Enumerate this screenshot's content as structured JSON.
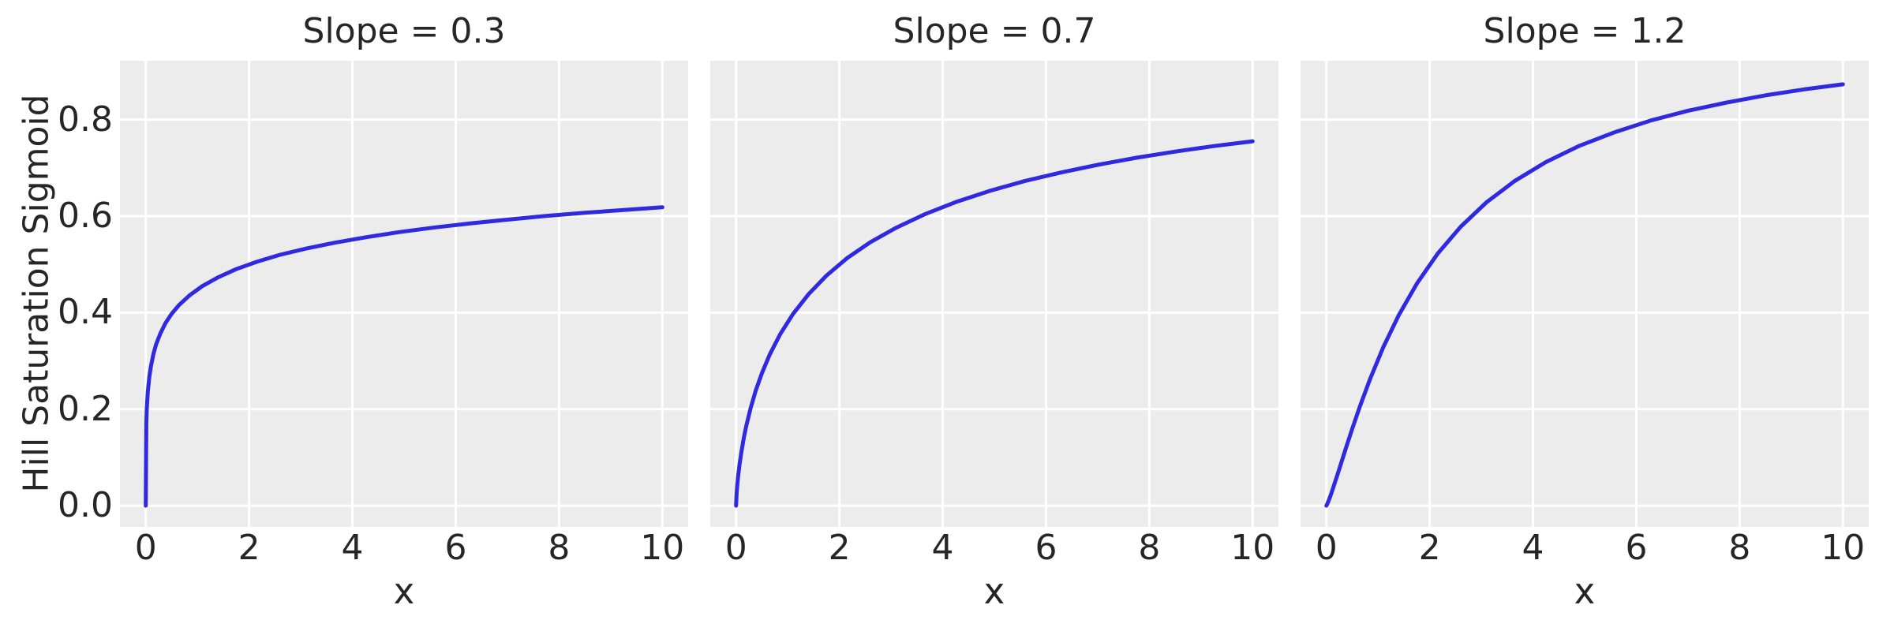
{
  "figure": {
    "background": "#ffffff",
    "axes_background": "#ececec",
    "grid_color": "#ffffff",
    "text_color": "#262626",
    "line_color": "#3029e0"
  },
  "chart_data": {
    "type": "line",
    "title": "",
    "xlabel": "x",
    "ylabel": "Hill Saturation Sigmoid",
    "grid": true,
    "legend": "none",
    "xlim": [
      -0.5,
      10.5
    ],
    "ylim": [
      -0.044,
      0.922
    ],
    "x_ticks": [
      {
        "label": "0",
        "value": 0
      },
      {
        "label": "2",
        "value": 2
      },
      {
        "label": "4",
        "value": 4
      },
      {
        "label": "6",
        "value": 6
      },
      {
        "label": "8",
        "value": 8
      },
      {
        "label": "10",
        "value": 10
      }
    ],
    "y_ticks": [
      {
        "label": "0.0",
        "value": 0.0
      },
      {
        "label": "0.2",
        "value": 0.2
      },
      {
        "label": "0.4",
        "value": 0.4
      },
      {
        "label": "0.6",
        "value": 0.6
      },
      {
        "label": "0.8",
        "value": 0.8
      }
    ],
    "panels": [
      {
        "title": "Slope = 0.3",
        "slope": 0.3
      },
      {
        "title": "Slope = 0.7",
        "slope": 0.7
      },
      {
        "title": "Slope = 1.2",
        "slope": 1.2
      }
    ],
    "x": [
      0,
      0.01,
      0.02,
      0.04,
      0.07,
      0.1,
      0.15,
      0.2,
      0.28,
      0.38,
      0.5,
      0.65,
      0.85,
      1.1,
      1.4,
      1.75,
      2.15,
      2.6,
      3.1,
      3.65,
      4.25,
      4.9,
      5.6,
      6.3,
      7.0,
      7.75,
      8.5,
      9.25,
      10
    ],
    "series": [
      {
        "name": "Slope = 0.3",
        "values": [
          0,
          0.169,
          0.2007,
          0.2362,
          0.2678,
          0.2892,
          0.3149,
          0.334,
          0.3565,
          0.378,
          0.3975,
          0.4165,
          0.4361,
          0.4553,
          0.4732,
          0.4901,
          0.5054,
          0.5199,
          0.5327,
          0.5448,
          0.5561,
          0.5668,
          0.5766,
          0.5851,
          0.5927,
          0.6003,
          0.6069,
          0.6128,
          0.6183
        ]
      },
      {
        "name": "Slope = 0.7",
        "values": [
          0,
          0.0239,
          0.0383,
          0.0608,
          0.0874,
          0.1094,
          0.1403,
          0.1663,
          0.2017,
          0.2382,
          0.2748,
          0.3128,
          0.3546,
          0.3968,
          0.4378,
          0.4767,
          0.513,
          0.5459,
          0.5759,
          0.6038,
          0.6289,
          0.6519,
          0.673,
          0.6906,
          0.7062,
          0.7209,
          0.7337,
          0.7451,
          0.7551
        ]
      },
      {
        "name": "Slope = 1.2",
        "values": [
          0,
          0.0017,
          0.004,
          0.0091,
          0.0176,
          0.0267,
          0.0428,
          0.0593,
          0.0863,
          0.1199,
          0.1594,
          0.2061,
          0.2636,
          0.3279,
          0.3946,
          0.46,
          0.5217,
          0.5779,
          0.6286,
          0.673,
          0.7119,
          0.7458,
          0.7746,
          0.7988,
          0.8183,
          0.8354,
          0.8503,
          0.8627,
          0.8731
        ]
      }
    ]
  }
}
